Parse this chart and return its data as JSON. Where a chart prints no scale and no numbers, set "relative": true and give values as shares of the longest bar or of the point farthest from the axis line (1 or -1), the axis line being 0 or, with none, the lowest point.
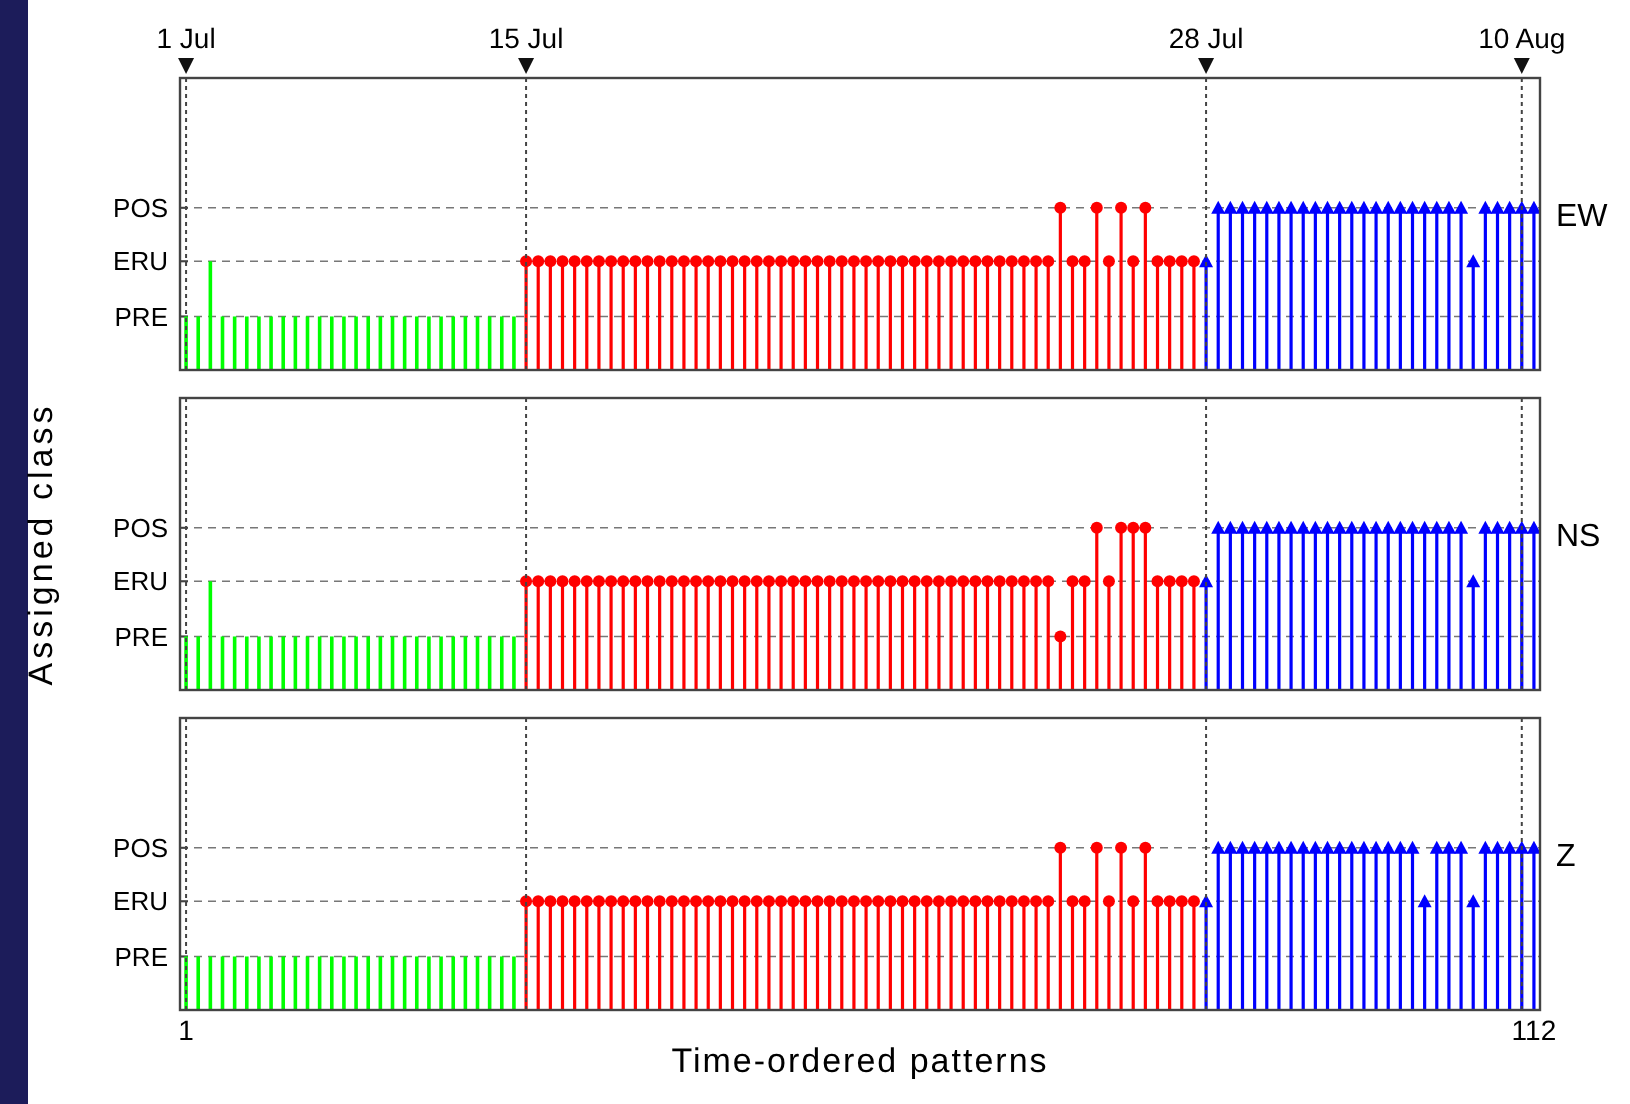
{
  "chart_data": [
    {
      "type": "lollipop",
      "title": "EW",
      "xlim": [
        0.5,
        112.5
      ],
      "relative": true,
      "tick_labels": "y",
      "ref_lines": [
        {
          "axis": "x",
          "value": 1,
          "label": "1 Jul",
          "line_style": "dotted"
        },
        {
          "axis": "x",
          "value": 29,
          "label": "15 Jul",
          "line_style": "dotted"
        },
        {
          "axis": "x",
          "value": 85,
          "label": "28 Jul",
          "line_style": "dotted"
        },
        {
          "axis": "x",
          "value": 111,
          "label": "10 Aug",
          "line_style": "dotted"
        },
        {
          "axis": "y",
          "value": 1,
          "label": "POS",
          "line_style": "dashed"
        },
        {
          "axis": "y",
          "value": 0.67,
          "label": "ERU",
          "line_style": "dashed"
        },
        {
          "axis": "y",
          "value": 0.33,
          "label": "PRE",
          "line_style": "dashed"
        }
      ],
      "series": [
        {
          "type": "bar",
          "color": "#00ff00",
          "x": [
            1,
            2,
            3,
            4,
            5,
            6,
            7,
            8,
            9,
            10,
            11,
            12,
            13,
            14,
            15,
            16,
            17,
            18,
            19,
            20,
            21,
            22,
            23,
            24,
            25,
            26,
            27,
            28
          ],
          "values": [
            0.33,
            0.33,
            0.67,
            0.33,
            0.33,
            0.33,
            0.33,
            0.33,
            0.33,
            0.33,
            0.33,
            0.33,
            0.33,
            0.33,
            0.33,
            0.33,
            0.33,
            0.33,
            0.33,
            0.33,
            0.33,
            0.33,
            0.33,
            0.33,
            0.33,
            0.33,
            0.33,
            0.33
          ]
        },
        {
          "color": "#ff0000",
          "marker": "circle",
          "x": [
            29,
            30,
            31,
            32,
            33,
            34,
            35,
            36,
            37,
            38,
            39,
            40,
            41,
            42,
            43,
            44,
            45,
            46,
            47,
            48,
            49,
            50,
            51,
            52,
            53,
            54,
            55,
            56,
            57,
            58,
            59,
            60,
            61,
            62,
            63,
            64,
            65,
            66,
            67,
            68,
            69,
            70,
            71,
            72,
            73,
            74,
            75,
            76,
            77,
            78,
            79,
            80,
            81,
            82,
            83,
            84
          ],
          "values": [
            0.67,
            0.67,
            0.67,
            0.67,
            0.67,
            0.67,
            0.67,
            0.67,
            0.67,
            0.67,
            0.67,
            0.67,
            0.67,
            0.67,
            0.67,
            0.67,
            0.67,
            0.67,
            0.67,
            0.67,
            0.67,
            0.67,
            0.67,
            0.67,
            0.67,
            0.67,
            0.67,
            0.67,
            0.67,
            0.67,
            0.67,
            0.67,
            0.67,
            0.67,
            0.67,
            0.67,
            0.67,
            0.67,
            0.67,
            0.67,
            0.67,
            0.67,
            0.67,
            0.67,
            1,
            0.67,
            0.67,
            1,
            0.67,
            1,
            0.67,
            1,
            0.67,
            0.67,
            0.67,
            0.67
          ]
        },
        {
          "color": "#0000ff",
          "marker": "triangle",
          "x": [
            85,
            86,
            87,
            88,
            89,
            90,
            91,
            92,
            93,
            94,
            95,
            96,
            97,
            98,
            99,
            100,
            101,
            102,
            103,
            104,
            105,
            106,
            107,
            108,
            109,
            110,
            111,
            112
          ],
          "values": [
            0.67,
            1,
            1,
            1,
            1,
            1,
            1,
            1,
            1,
            1,
            1,
            1,
            1,
            1,
            1,
            1,
            1,
            1,
            1,
            1,
            1,
            1,
            0.67,
            1,
            1,
            1,
            1,
            1
          ]
        }
      ]
    },
    {
      "type": "lollipop",
      "title": "NS",
      "ylabel": "Assigned class",
      "xlim": [
        0.5,
        112.5
      ],
      "relative": true,
      "tick_labels": "y",
      "ref_lines": [
        {
          "axis": "x",
          "value": 1,
          "line_style": "dotted"
        },
        {
          "axis": "x",
          "value": 29,
          "line_style": "dotted"
        },
        {
          "axis": "x",
          "value": 85,
          "line_style": "dotted"
        },
        {
          "axis": "x",
          "value": 111,
          "line_style": "dotted"
        },
        {
          "axis": "y",
          "value": 1,
          "label": "POS",
          "line_style": "dashed"
        },
        {
          "axis": "y",
          "value": 0.67,
          "label": "ERU",
          "line_style": "dashed"
        },
        {
          "axis": "y",
          "value": 0.33,
          "label": "PRE",
          "line_style": "dashed"
        }
      ],
      "series": [
        {
          "type": "bar",
          "color": "#00ff00",
          "x": [
            1,
            2,
            3,
            4,
            5,
            6,
            7,
            8,
            9,
            10,
            11,
            12,
            13,
            14,
            15,
            16,
            17,
            18,
            19,
            20,
            21,
            22,
            23,
            24,
            25,
            26,
            27,
            28
          ],
          "values": [
            0.33,
            0.33,
            0.67,
            0.33,
            0.33,
            0.33,
            0.33,
            0.33,
            0.33,
            0.33,
            0.33,
            0.33,
            0.33,
            0.33,
            0.33,
            0.33,
            0.33,
            0.33,
            0.33,
            0.33,
            0.33,
            0.33,
            0.33,
            0.33,
            0.33,
            0.33,
            0.33,
            0.33
          ]
        },
        {
          "color": "#ff0000",
          "marker": "circle",
          "x": [
            29,
            30,
            31,
            32,
            33,
            34,
            35,
            36,
            37,
            38,
            39,
            40,
            41,
            42,
            43,
            44,
            45,
            46,
            47,
            48,
            49,
            50,
            51,
            52,
            53,
            54,
            55,
            56,
            57,
            58,
            59,
            60,
            61,
            62,
            63,
            64,
            65,
            66,
            67,
            68,
            69,
            70,
            71,
            72,
            73,
            74,
            75,
            76,
            77,
            78,
            79,
            80,
            81,
            82,
            83,
            84
          ],
          "values": [
            0.67,
            0.67,
            0.67,
            0.67,
            0.67,
            0.67,
            0.67,
            0.67,
            0.67,
            0.67,
            0.67,
            0.67,
            0.67,
            0.67,
            0.67,
            0.67,
            0.67,
            0.67,
            0.67,
            0.67,
            0.67,
            0.67,
            0.67,
            0.67,
            0.67,
            0.67,
            0.67,
            0.67,
            0.67,
            0.67,
            0.67,
            0.67,
            0.67,
            0.67,
            0.67,
            0.67,
            0.67,
            0.67,
            0.67,
            0.67,
            0.67,
            0.67,
            0.67,
            0.67,
            0.33,
            0.67,
            0.67,
            1,
            0.67,
            1,
            1,
            1,
            0.67,
            0.67,
            0.67,
            0.67
          ]
        },
        {
          "color": "#0000ff",
          "marker": "triangle",
          "x": [
            85,
            86,
            87,
            88,
            89,
            90,
            91,
            92,
            93,
            94,
            95,
            96,
            97,
            98,
            99,
            100,
            101,
            102,
            103,
            104,
            105,
            106,
            107,
            108,
            109,
            110,
            111,
            112
          ],
          "values": [
            0.67,
            1,
            1,
            1,
            1,
            1,
            1,
            1,
            1,
            1,
            1,
            1,
            1,
            1,
            1,
            1,
            1,
            1,
            1,
            1,
            1,
            1,
            0.67,
            1,
            1,
            1,
            1,
            1
          ]
        }
      ]
    },
    {
      "type": "lollipop",
      "title": "Z",
      "xlabel": "Time-ordered  patterns",
      "xlim": [
        0.5,
        112.5
      ],
      "xticks": [
        1,
        112
      ],
      "relative": true,
      "ref_lines": [
        {
          "axis": "x",
          "value": 1,
          "line_style": "dotted"
        },
        {
          "axis": "x",
          "value": 29,
          "line_style": "dotted"
        },
        {
          "axis": "x",
          "value": 85,
          "line_style": "dotted"
        },
        {
          "axis": "x",
          "value": 111,
          "line_style": "dotted"
        },
        {
          "axis": "y",
          "value": 1,
          "label": "POS",
          "line_style": "dashed"
        },
        {
          "axis": "y",
          "value": 0.67,
          "label": "ERU",
          "line_style": "dashed"
        },
        {
          "axis": "y",
          "value": 0.33,
          "label": "PRE",
          "line_style": "dashed"
        }
      ],
      "series": [
        {
          "type": "bar",
          "color": "#00ff00",
          "x": [
            1,
            2,
            3,
            4,
            5,
            6,
            7,
            8,
            9,
            10,
            11,
            12,
            13,
            14,
            15,
            16,
            17,
            18,
            19,
            20,
            21,
            22,
            23,
            24,
            25,
            26,
            27,
            28
          ],
          "values": [
            0.33,
            0.33,
            0.33,
            0.33,
            0.33,
            0.33,
            0.33,
            0.33,
            0.33,
            0.33,
            0.33,
            0.33,
            0.33,
            0.33,
            0.33,
            0.33,
            0.33,
            0.33,
            0.33,
            0.33,
            0.33,
            0.33,
            0.33,
            0.33,
            0.33,
            0.33,
            0.33,
            0.33
          ]
        },
        {
          "color": "#ff0000",
          "marker": "circle",
          "x": [
            29,
            30,
            31,
            32,
            33,
            34,
            35,
            36,
            37,
            38,
            39,
            40,
            41,
            42,
            43,
            44,
            45,
            46,
            47,
            48,
            49,
            50,
            51,
            52,
            53,
            54,
            55,
            56,
            57,
            58,
            59,
            60,
            61,
            62,
            63,
            64,
            65,
            66,
            67,
            68,
            69,
            70,
            71,
            72,
            73,
            74,
            75,
            76,
            77,
            78,
            79,
            80,
            81,
            82,
            83,
            84
          ],
          "values": [
            0.67,
            0.67,
            0.67,
            0.67,
            0.67,
            0.67,
            0.67,
            0.67,
            0.67,
            0.67,
            0.67,
            0.67,
            0.67,
            0.67,
            0.67,
            0.67,
            0.67,
            0.67,
            0.67,
            0.67,
            0.67,
            0.67,
            0.67,
            0.67,
            0.67,
            0.67,
            0.67,
            0.67,
            0.67,
            0.67,
            0.67,
            0.67,
            0.67,
            0.67,
            0.67,
            0.67,
            0.67,
            0.67,
            0.67,
            0.67,
            0.67,
            0.67,
            0.67,
            0.67,
            1,
            0.67,
            0.67,
            1,
            0.67,
            1,
            0.67,
            1,
            0.67,
            0.67,
            0.67,
            0.67
          ]
        },
        {
          "color": "#0000ff",
          "marker": "triangle",
          "x": [
            85,
            86,
            87,
            88,
            89,
            90,
            91,
            92,
            93,
            94,
            95,
            96,
            97,
            98,
            99,
            100,
            101,
            102,
            103,
            104,
            105,
            106,
            107,
            108,
            109,
            110,
            111,
            112
          ],
          "values": [
            0.67,
            1,
            1,
            1,
            1,
            1,
            1,
            1,
            1,
            1,
            1,
            1,
            1,
            1,
            1,
            1,
            1,
            1,
            0.67,
            1,
            1,
            1,
            0.67,
            1,
            1,
            1,
            1,
            1
          ]
        }
      ]
    }
  ]
}
